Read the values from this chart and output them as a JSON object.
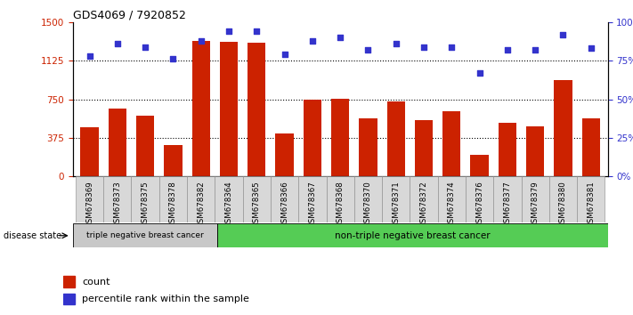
{
  "title": "GDS4069 / 7920852",
  "categories": [
    "GSM678369",
    "GSM678373",
    "GSM678375",
    "GSM678378",
    "GSM678382",
    "GSM678364",
    "GSM678365",
    "GSM678366",
    "GSM678367",
    "GSM678368",
    "GSM678370",
    "GSM678371",
    "GSM678372",
    "GSM678374",
    "GSM678376",
    "GSM678377",
    "GSM678379",
    "GSM678380",
    "GSM678381"
  ],
  "bar_values": [
    480,
    660,
    590,
    305,
    1320,
    1310,
    1295,
    420,
    745,
    755,
    560,
    730,
    545,
    635,
    210,
    520,
    490,
    940,
    560
  ],
  "dot_values": [
    78,
    86,
    84,
    76,
    88,
    94,
    94,
    79,
    88,
    90,
    82,
    86,
    84,
    84,
    67,
    82,
    82,
    92,
    83
  ],
  "bar_color": "#cc2200",
  "dot_color_hex": "#3333cc",
  "ylim_left": [
    0,
    1500
  ],
  "ylim_right": [
    0,
    100
  ],
  "yticks_left": [
    0,
    375,
    750,
    1125,
    1500
  ],
  "yticks_right": [
    0,
    25,
    50,
    75,
    100
  ],
  "ytick_labels_left": [
    "0",
    "375",
    "750",
    "1125",
    "1500"
  ],
  "ytick_labels_right": [
    "0%",
    "25%",
    "50%",
    "75%",
    "100%"
  ],
  "hlines": [
    375,
    750,
    1125
  ],
  "group1_label": "triple negative breast cancer",
  "group2_label": "non-triple negative breast cancer",
  "group1_count": 5,
  "disease_label": "disease state",
  "legend_bar": "count",
  "legend_dot": "percentile rank within the sample",
  "group1_bg": "#c8c8c8",
  "group2_bg": "#55cc55",
  "xtick_bg": "#d8d8d8"
}
